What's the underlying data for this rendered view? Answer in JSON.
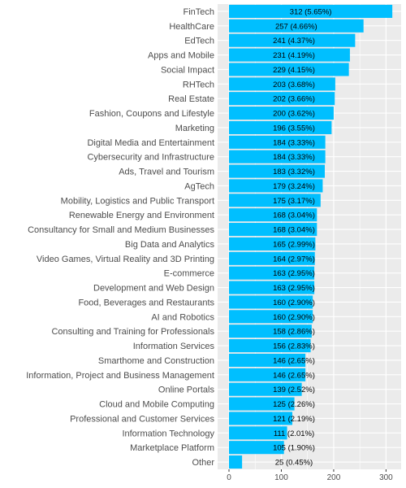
{
  "chart_data": {
    "type": "bar",
    "orientation": "horizontal",
    "categories": [
      "FinTech",
      "HealthCare",
      "EdTech",
      "Apps and Mobile",
      "Social Impact",
      "RHTech",
      "Real Estate",
      "Fashion, Coupons and Lifestyle",
      "Marketing",
      "Digital Media and Entertainment",
      "Cybersecurity and Infrastructure",
      "Ads, Travel and Tourism",
      "AgTech",
      "Mobility, Logistics and Public Transport",
      "Renewable Energy and Environment",
      "Consultancy for Small and Medium Businesses",
      "Big Data and Analytics",
      "Video Games, Virtual Reality and 3D Printing",
      "E-commerce",
      "Development and Web Design",
      "Food, Beverages and Restaurants",
      "AI and Robotics",
      "Consulting and Training for Professionals",
      "Information Services",
      "Smarthome and Construction",
      "Information, Project and Business Management",
      "Online Portals",
      "Cloud and Mobile Computing",
      "Professional and Customer Services",
      "Information Technology",
      "Marketplace Platform",
      "Other"
    ],
    "values": [
      312,
      257,
      241,
      231,
      229,
      203,
      202,
      200,
      196,
      184,
      184,
      183,
      179,
      175,
      168,
      168,
      165,
      164,
      163,
      163,
      160,
      160,
      158,
      156,
      146,
      146,
      139,
      125,
      121,
      111,
      105,
      25
    ],
    "data_labels": [
      "312 (5.65%)",
      "257 (4.66%)",
      "241 (4.37%)",
      "231 (4.19%)",
      "229 (4.15%)",
      "203 (3.68%)",
      "202 (3.66%)",
      "200 (3.62%)",
      "196 (3.55%)",
      "184 (3.33%)",
      "184 (3.33%)",
      "183 (3.32%)",
      "179 (3.24%)",
      "175 (3.17%)",
      "168 (3.04%)",
      "168 (3.04%)",
      "165 (2.99%)",
      "164 (2.97%)",
      "163 (2.95%)",
      "163 (2.95%)",
      "160 (2.90%)",
      "160 (2.90%)",
      "158 (2.86%)",
      "156 (2.83%)",
      "146 (2.65%)",
      "146 (2.65%)",
      "139 (2.52%)",
      "125 (2.26%)",
      "121 (2.19%)",
      "111 (2.01%)",
      "105 (1.90%)",
      "25 (0.45%)"
    ],
    "xticks": [
      0,
      100,
      200,
      300
    ],
    "xlim": [
      0,
      327
    ],
    "title": "",
    "xlabel": "",
    "ylabel": "",
    "grid": true,
    "colors": {
      "bar": "#00BFFF",
      "panel": "#EBEBEB",
      "grid_major": "#FFFFFF",
      "text": "#000000",
      "axis_text": "#4D4D4D"
    }
  }
}
